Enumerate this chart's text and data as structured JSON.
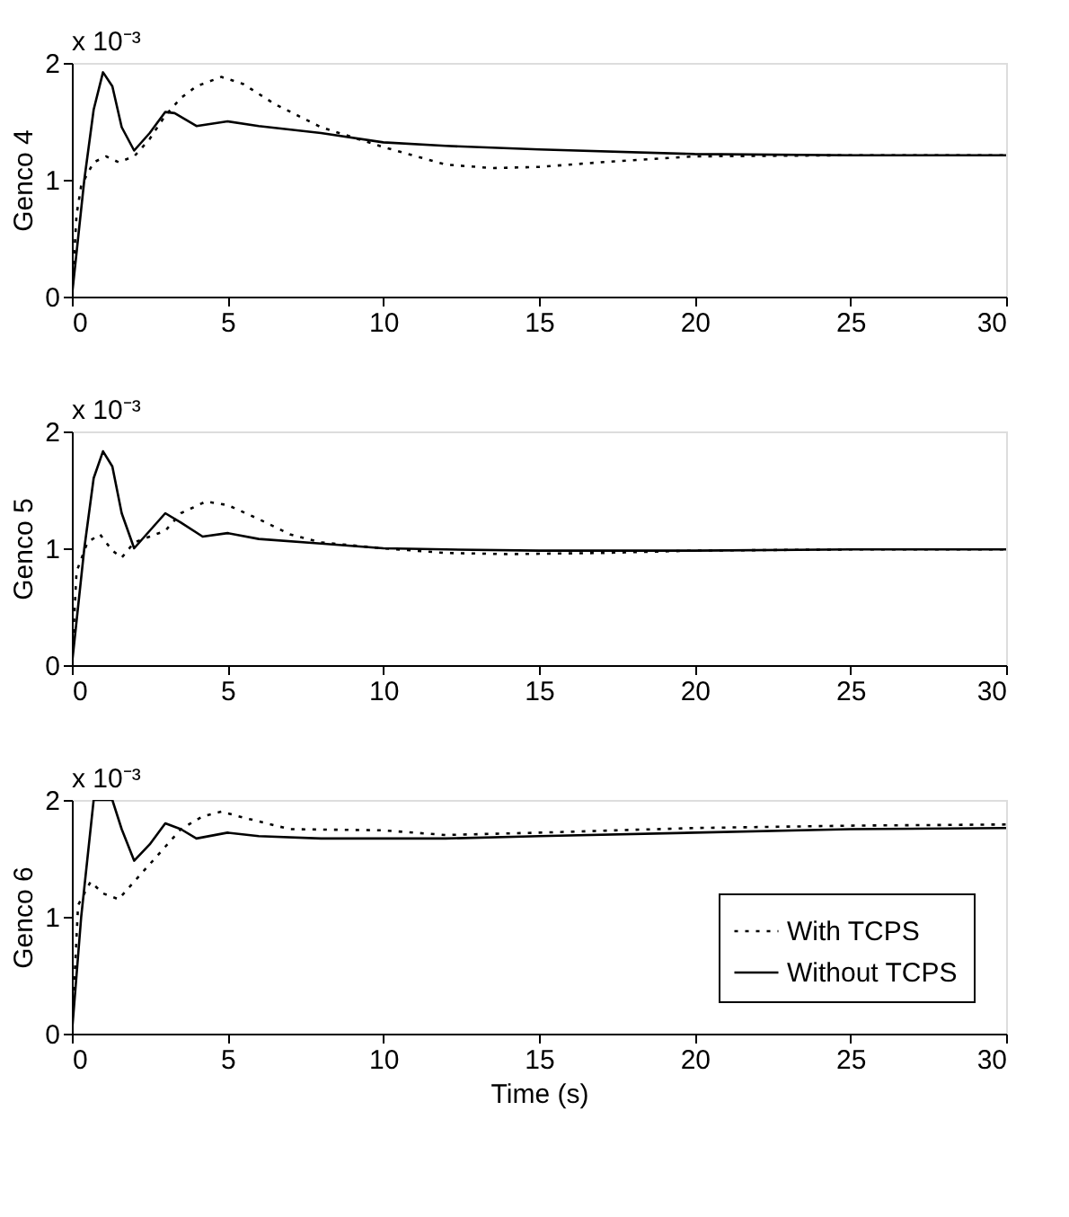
{
  "chart_data": [
    {
      "type": "line",
      "ylabel": "Genco 4",
      "annotations": [
        "x 10⁻³"
      ],
      "xlim": [
        0,
        30
      ],
      "xticks": [
        0,
        5,
        10,
        15,
        20,
        25,
        30
      ],
      "ylim": [
        0,
        2
      ],
      "yticks": [
        0,
        1,
        2
      ],
      "grid": false,
      "legend": false,
      "series": [
        {
          "color": "#000000",
          "line_style": "dotted",
          "x": [
            0,
            0.15,
            0.3,
            0.7,
            1.1,
            1.5,
            2.0,
            2.5,
            3.0,
            3.5,
            4.0,
            4.8,
            5.5,
            6.5,
            8,
            10,
            12,
            13.5,
            15,
            17,
            20,
            25,
            30
          ],
          "values": [
            0,
            0.7,
            0.95,
            1.15,
            1.2,
            1.15,
            1.2,
            1.35,
            1.55,
            1.7,
            1.8,
            1.88,
            1.82,
            1.65,
            1.45,
            1.28,
            1.13,
            1.1,
            1.11,
            1.15,
            1.2,
            1.21,
            1.21
          ]
        },
        {
          "color": "#000000",
          "line_style": "solid",
          "x": [
            0,
            0.4,
            0.7,
            1.0,
            1.3,
            1.6,
            2.0,
            2.5,
            3.0,
            3.3,
            4.0,
            5,
            6,
            8,
            10,
            12,
            15,
            20,
            25,
            30
          ],
          "values": [
            0,
            1.0,
            1.6,
            1.92,
            1.8,
            1.45,
            1.25,
            1.4,
            1.58,
            1.57,
            1.46,
            1.5,
            1.46,
            1.4,
            1.32,
            1.29,
            1.26,
            1.22,
            1.21,
            1.21
          ]
        }
      ]
    },
    {
      "type": "line",
      "ylabel": "Genco 5",
      "annotations": [
        "x 10⁻³"
      ],
      "xlim": [
        0,
        30
      ],
      "xticks": [
        0,
        5,
        10,
        15,
        20,
        25,
        30
      ],
      "ylim": [
        0,
        2
      ],
      "yticks": [
        0,
        1,
        2
      ],
      "grid": false,
      "legend": false,
      "series": [
        {
          "color": "#000000",
          "line_style": "dotted",
          "x": [
            0,
            0.15,
            0.5,
            0.9,
            1.3,
            1.6,
            2.0,
            2.5,
            3.0,
            3.5,
            4.3,
            5,
            6,
            7,
            8,
            10,
            12,
            14,
            17,
            20,
            25,
            30
          ],
          "values": [
            0,
            0.8,
            1.05,
            1.12,
            0.98,
            0.92,
            1.05,
            1.1,
            1.15,
            1.3,
            1.4,
            1.37,
            1.25,
            1.12,
            1.05,
            1.0,
            0.96,
            0.95,
            0.96,
            0.98,
            0.99,
            0.99
          ]
        },
        {
          "color": "#000000",
          "line_style": "solid",
          "x": [
            0,
            0.4,
            0.7,
            1.0,
            1.3,
            1.6,
            2.0,
            2.5,
            3.0,
            3.5,
            4.2,
            5,
            6,
            8,
            10,
            12,
            15,
            20,
            25,
            30
          ],
          "values": [
            0,
            1.0,
            1.6,
            1.83,
            1.7,
            1.3,
            1.0,
            1.15,
            1.3,
            1.22,
            1.1,
            1.13,
            1.08,
            1.04,
            1.0,
            0.99,
            0.98,
            0.98,
            0.99,
            0.99
          ]
        }
      ]
    },
    {
      "type": "line",
      "ylabel": "Genco 6",
      "xlabel": "Time (s)",
      "annotations": [
        "x 10⁻³"
      ],
      "xlim": [
        0,
        30
      ],
      "xticks": [
        0,
        5,
        10,
        15,
        20,
        25,
        30
      ],
      "ylim": [
        0,
        2
      ],
      "yticks": [
        0,
        1,
        2
      ],
      "grid": false,
      "legend": "bottom right",
      "series": [
        {
          "name": "With TCPS",
          "color": "#000000",
          "line_style": "dotted",
          "x": [
            0,
            0.2,
            0.6,
            1.0,
            1.5,
            2.0,
            2.5,
            3.0,
            3.5,
            4.2,
            4.8,
            5.5,
            7,
            10,
            12,
            15,
            20,
            25,
            30
          ],
          "values": [
            0,
            1.1,
            1.3,
            1.2,
            1.15,
            1.3,
            1.45,
            1.6,
            1.75,
            1.86,
            1.9,
            1.85,
            1.75,
            1.74,
            1.7,
            1.72,
            1.76,
            1.78,
            1.79
          ]
        },
        {
          "name": "Without TCPS",
          "color": "#000000",
          "line_style": "solid",
          "x": [
            0,
            0.3,
            0.7,
            1.3,
            1.6,
            2.0,
            2.5,
            3.0,
            3.5,
            4.0,
            5,
            6,
            8,
            12,
            15,
            20,
            25,
            30
          ],
          "values": [
            0,
            1.0,
            2.0,
            2.0,
            1.75,
            1.48,
            1.62,
            1.8,
            1.75,
            1.67,
            1.72,
            1.69,
            1.67,
            1.67,
            1.69,
            1.72,
            1.75,
            1.76
          ]
        }
      ]
    }
  ]
}
